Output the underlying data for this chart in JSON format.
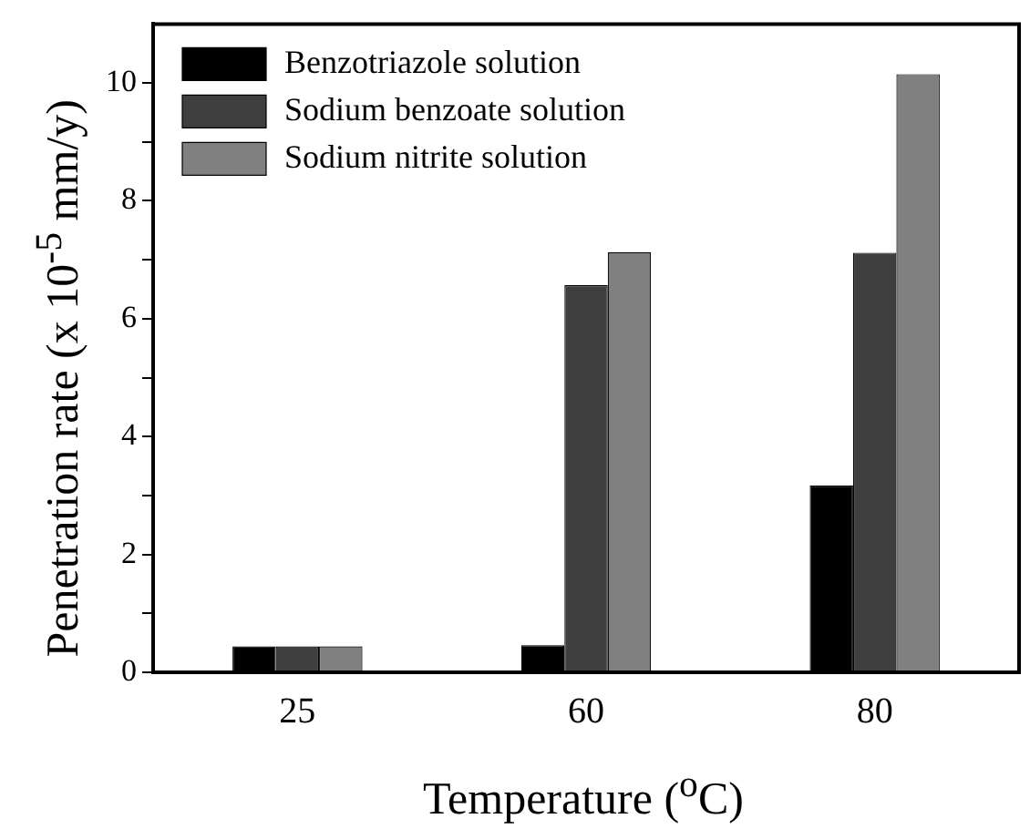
{
  "chart_data": {
    "type": "bar",
    "xlabel": "Temperature ($^{o}$C)",
    "ylabel": "Penetration rate (x 10$^{-5}$ mm/y)",
    "categories": [
      "25",
      "60",
      "80"
    ],
    "series": [
      {
        "name": "Benzotriazole solution",
        "color": "#000000",
        "values": [
          0.44,
          0.46,
          3.17
        ]
      },
      {
        "name": "Sodium benzoate solution",
        "color": "#3f3f3f",
        "values": [
          0.44,
          6.57,
          7.12
        ]
      },
      {
        "name": "Sodium nitrite solution",
        "color": "#808080",
        "values": [
          0.44,
          7.13,
          10.15
        ]
      }
    ],
    "ylim": [
      0,
      11
    ],
    "yticks": [
      0,
      {
        "value": 1,
        "label": null
      },
      2,
      {
        "value": 3,
        "label": null
      },
      4,
      {
        "value": 5,
        "label": null
      },
      6,
      {
        "value": 7,
        "label": null
      },
      8,
      {
        "value": 9,
        "label": null
      },
      10
    ],
    "grid": false,
    "legend": "top left"
  }
}
